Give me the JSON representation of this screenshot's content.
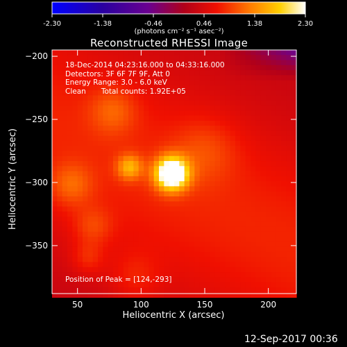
{
  "chart_data": {
    "type": "heatmap",
    "title": "Reconstructed RHESSI Image",
    "xlabel": "Heliocentric X (arcsec)",
    "ylabel": "Heliocentric Y (arcsec)",
    "xlim": [
      30,
      222
    ],
    "ylim": [
      -388,
      -195
    ],
    "x_ticks": [
      50,
      100,
      150,
      200
    ],
    "y_ticks": [
      -200,
      -250,
      -300,
      -350
    ],
    "colorbar": {
      "range": [
        -2.3,
        2.3
      ],
      "ticks": [
        "-2.30",
        "-1.38",
        "-0.46",
        "0.46",
        "1.38",
        "2.30"
      ],
      "label": "(photons cm⁻² s⁻¹ asec⁻²)",
      "colormap": "blue-purple-red-yellow-white"
    },
    "annotations": {
      "time": "18-Dec-2014 04:23:16.000 to 04:33:16.000",
      "detectors": "Detectors: 3F 6F 7F 9F, Att 0",
      "energy": "Energy Range: 3.0 - 6.0 keV",
      "method": "Clean",
      "counts": "Total counts: 1.92E+05",
      "peak": "Position of Peak = [124,-293]"
    },
    "peak": {
      "x": 124,
      "y": -293,
      "value": 2.3
    },
    "sources": [
      {
        "x": 124,
        "y": -293,
        "sigma": 9,
        "amp": 2.3
      },
      {
        "x": 91,
        "y": -288,
        "sigma": 7,
        "amp": 0.9
      },
      {
        "x": 78,
        "y": -243,
        "sigma": 13,
        "amp": 0.45
      },
      {
        "x": 45,
        "y": -302,
        "sigma": 12,
        "amp": 0.5
      },
      {
        "x": 62,
        "y": -335,
        "sigma": 11,
        "amp": 0.4
      },
      {
        "x": 58,
        "y": -360,
        "sigma": 9,
        "amp": 0.35
      },
      {
        "x": 95,
        "y": -375,
        "sigma": 14,
        "amp": 0.3
      },
      {
        "x": 150,
        "y": -275,
        "sigma": 18,
        "amp": 0.35
      }
    ],
    "background": {
      "base": 0.25,
      "ridge_slope": -0.5,
      "ridge_width": 60,
      "dark_corner": "top-right"
    }
  },
  "footer": {
    "date": "12-Sep-2017 00:36"
  }
}
